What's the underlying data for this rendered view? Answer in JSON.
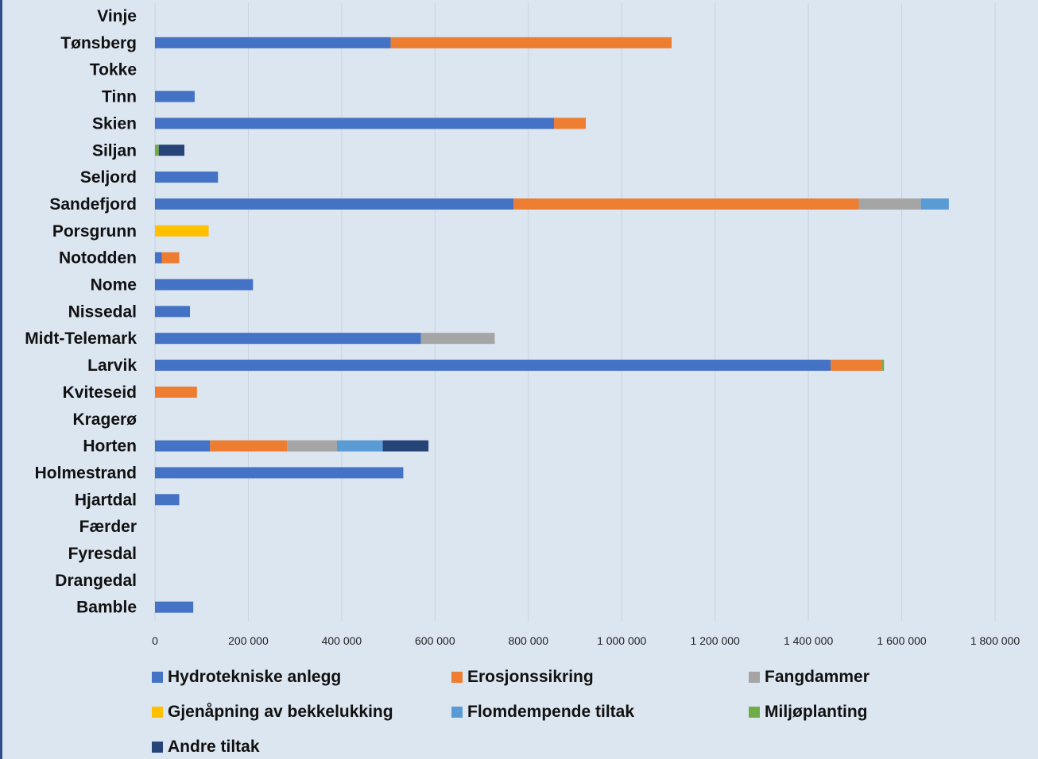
{
  "chart_data": {
    "type": "bar",
    "orientation": "horizontal",
    "stacked": true,
    "title": "",
    "xlabel": "",
    "ylabel": "",
    "xlim": [
      0,
      1800000
    ],
    "grid": true,
    "legend_position": "bottom",
    "categories": [
      "Vinje",
      "Tønsberg",
      "Tokke",
      "Tinn",
      "Skien",
      "Siljan",
      "Seljord",
      "Sandefjord",
      "Porsgrunn",
      "Notodden",
      "Nome",
      "Nissedal",
      "Midt-Telemark",
      "Larvik",
      "Kviteseid",
      "Kragerø",
      "Horten",
      "Holmestrand",
      "Hjartdal",
      "Færder",
      "Fyresdal",
      "Drangedal",
      "Bamble"
    ],
    "x_ticks": [
      "0",
      "200 000",
      "400 000",
      "600 000",
      "800 000",
      "1 000 000",
      "1 200 000",
      "1 400 000",
      "1 600 000",
      "1 800 000"
    ],
    "series": [
      {
        "name": "Hydrotekniske anlegg",
        "color": "#4472c4",
        "values": [
          0,
          505000,
          0,
          85000,
          855000,
          0,
          135000,
          768000,
          0,
          15000,
          210000,
          75000,
          570000,
          1448000,
          0,
          0,
          118000,
          532000,
          52000,
          0,
          0,
          0,
          82000
        ]
      },
      {
        "name": "Erosjonssikring",
        "color": "#ed7d31",
        "values": [
          0,
          602000,
          0,
          0,
          68000,
          0,
          0,
          740000,
          0,
          37000,
          0,
          0,
          0,
          110000,
          90000,
          0,
          165000,
          0,
          0,
          0,
          0,
          0,
          0
        ]
      },
      {
        "name": "Fangdammer",
        "color": "#a5a5a5",
        "values": [
          0,
          0,
          0,
          0,
          0,
          0,
          0,
          133000,
          0,
          0,
          0,
          0,
          158000,
          0,
          0,
          0,
          107000,
          0,
          0,
          0,
          0,
          0,
          0
        ]
      },
      {
        "name": "Gjenåpning av bekkelukking",
        "color": "#ffc000",
        "values": [
          0,
          0,
          0,
          0,
          0,
          0,
          0,
          0,
          115000,
          0,
          0,
          0,
          0,
          0,
          0,
          0,
          0,
          0,
          0,
          0,
          0,
          0,
          0
        ]
      },
      {
        "name": "Flomdempende tiltak",
        "color": "#5b9bd5",
        "values": [
          0,
          0,
          0,
          0,
          0,
          0,
          0,
          60000,
          0,
          0,
          0,
          0,
          0,
          0,
          0,
          0,
          98000,
          0,
          0,
          0,
          0,
          0,
          0
        ]
      },
      {
        "name": "Miljøplanting",
        "color": "#70ad47",
        "values": [
          0,
          0,
          0,
          0,
          0,
          8000,
          0,
          0,
          0,
          0,
          0,
          0,
          0,
          4000,
          0,
          0,
          0,
          0,
          0,
          0,
          0,
          0,
          0
        ]
      },
      {
        "name": "Andre tiltak",
        "color": "#264478",
        "values": [
          0,
          0,
          0,
          0,
          0,
          55000,
          0,
          0,
          0,
          0,
          0,
          0,
          0,
          0,
          0,
          0,
          98000,
          0,
          0,
          0,
          0,
          0,
          0
        ]
      }
    ]
  }
}
